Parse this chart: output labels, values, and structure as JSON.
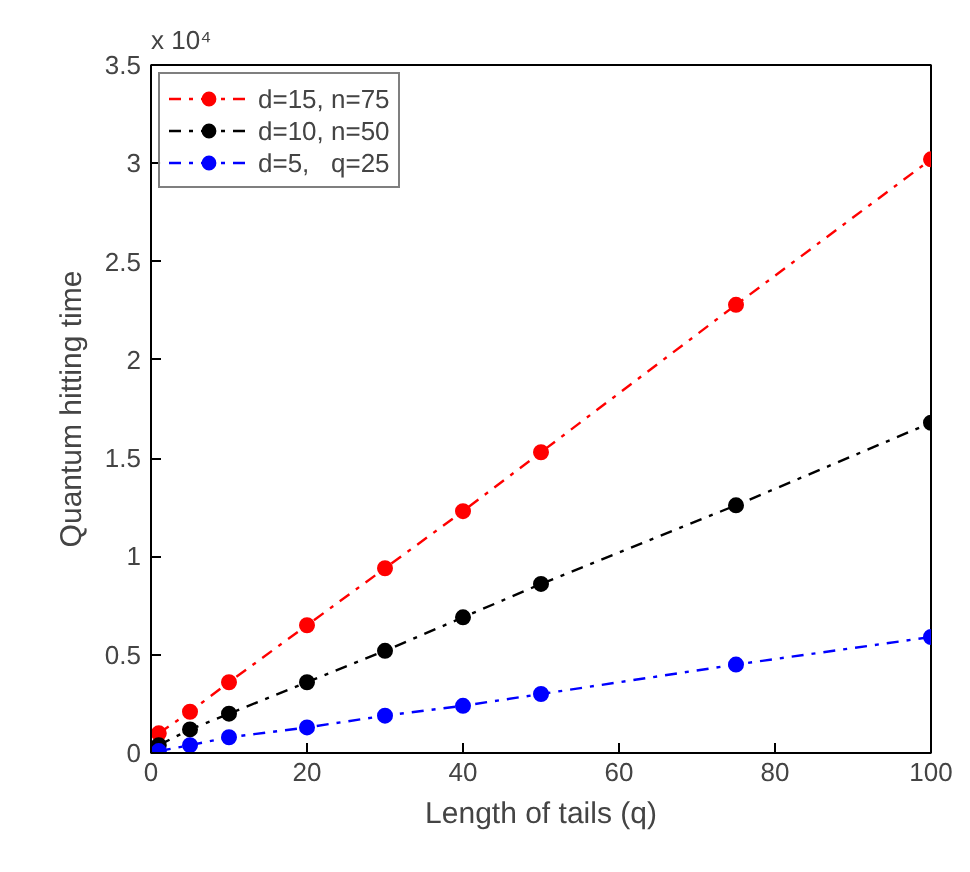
{
  "chart_data": {
    "type": "line",
    "xlabel": "Length of tails (q)",
    "ylabel": "Quantum hitting time",
    "annotations": [
      "x 10⁴"
    ],
    "x": [
      1,
      5,
      10,
      20,
      30,
      40,
      50,
      75,
      100
    ],
    "series": [
      {
        "name": "d=15, n=75",
        "color": "#ff0000",
        "values": [
          0.1,
          0.21,
          0.36,
          0.65,
          0.94,
          1.23,
          1.53,
          2.28,
          3.02
        ]
      },
      {
        "name": "d=10, n=50",
        "color": "#000000",
        "values": [
          0.04,
          0.12,
          0.2,
          0.36,
          0.52,
          0.69,
          0.86,
          1.26,
          1.68
        ]
      },
      {
        "name": "d=5,   q=25",
        "color": "#0000ff",
        "values": [
          0.01,
          0.04,
          0.08,
          0.13,
          0.19,
          0.24,
          0.3,
          0.45,
          0.59
        ]
      }
    ],
    "xlim": [
      0,
      100
    ],
    "xticks": [
      0,
      20,
      40,
      60,
      80,
      100
    ],
    "ylim": [
      0,
      3.5
    ],
    "yticks": [
      0,
      0.5,
      1,
      1.5,
      2,
      2.5,
      3,
      3.5
    ],
    "grid": false,
    "legend": "top left",
    "marker": "circle",
    "line_style": "dashdot"
  }
}
